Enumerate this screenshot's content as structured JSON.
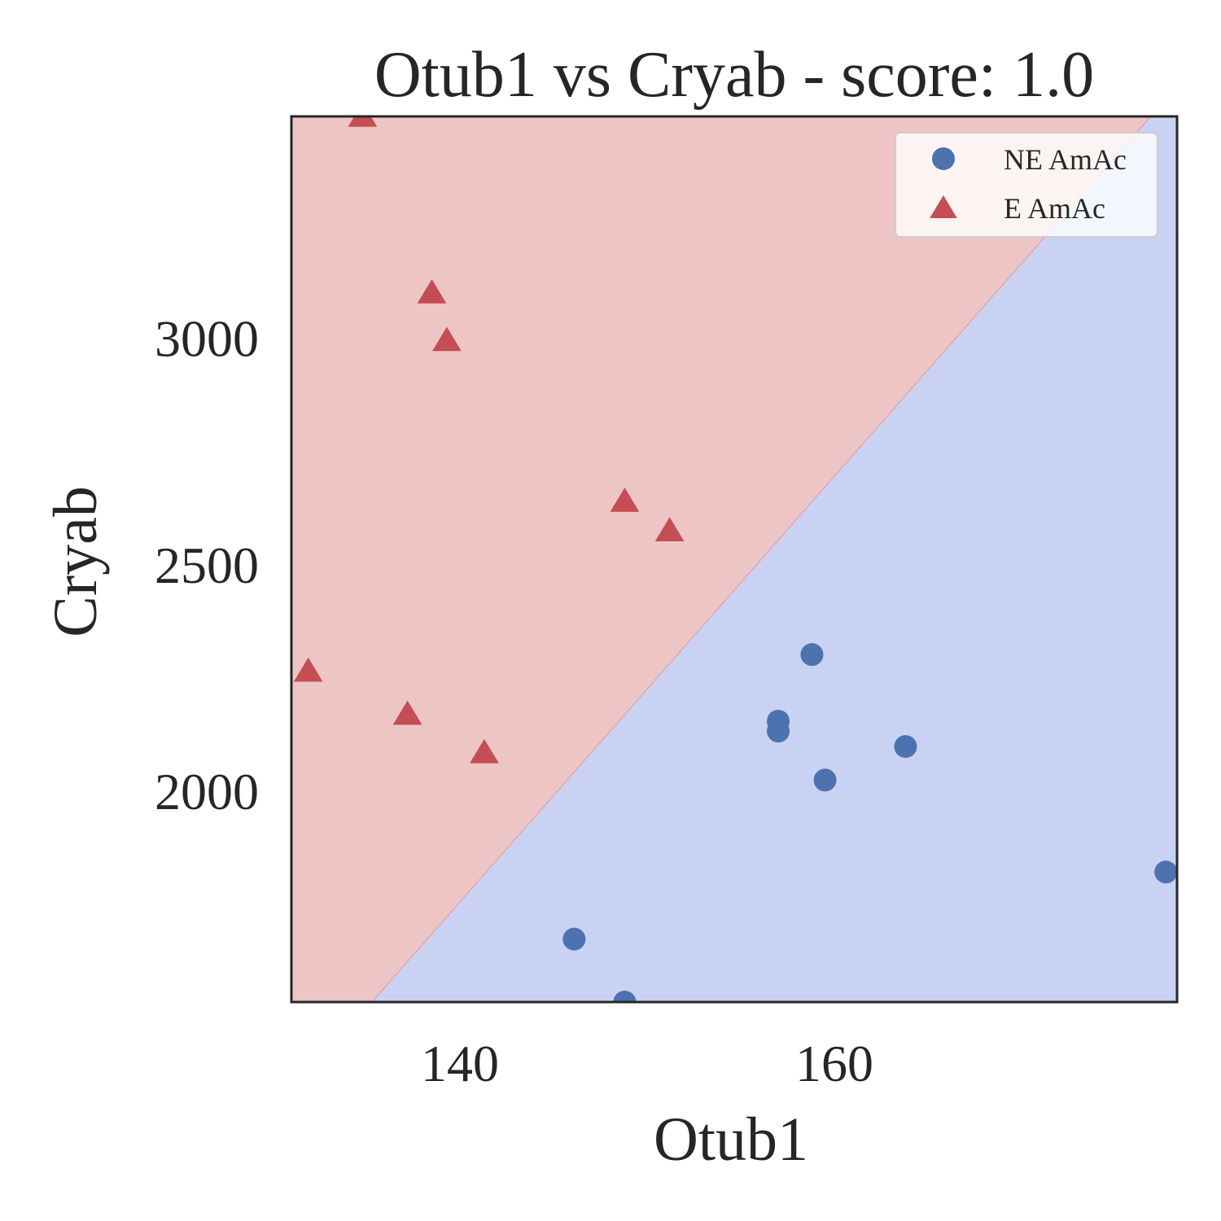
{
  "chart_data": {
    "type": "scatter",
    "title": "Otub1 vs Cryab - score: 1.0",
    "xlabel": "Otub1",
    "ylabel": "Cryab",
    "xlim": [
      131,
      178.3
    ],
    "ylim": [
      1535,
      3490
    ],
    "xticks": [
      140,
      160
    ],
    "yticks": [
      2000,
      2500,
      3000
    ],
    "grid": false,
    "legend_position": "top-right",
    "decision_boundary": {
      "points": [
        [
          135.3,
          1535
        ],
        [
          176.9,
          3490
        ]
      ],
      "region_above": "E AmAc",
      "region_below": "NE AmAc",
      "color_above": "#edc5c4",
      "color_below": "#c9d2f2"
    },
    "series": [
      {
        "name": "NE AmAc",
        "marker": "circle",
        "color": "#4c72b0",
        "points": [
          [
            146.1,
            1674
          ],
          [
            148.8,
            1535
          ],
          [
            157.0,
            2155
          ],
          [
            157.0,
            2133
          ],
          [
            158.8,
            2302
          ],
          [
            159.5,
            2025
          ],
          [
            163.8,
            2099
          ],
          [
            177.7,
            1822
          ]
        ]
      },
      {
        "name": "E AmAc",
        "marker": "triangle",
        "color": "#c44e52",
        "points": [
          [
            134.8,
            3490
          ],
          [
            138.5,
            3100
          ],
          [
            139.3,
            2995
          ],
          [
            131.9,
            2265
          ],
          [
            137.2,
            2170
          ],
          [
            141.3,
            2085
          ],
          [
            148.8,
            2640
          ],
          [
            151.2,
            2575
          ]
        ]
      }
    ]
  }
}
